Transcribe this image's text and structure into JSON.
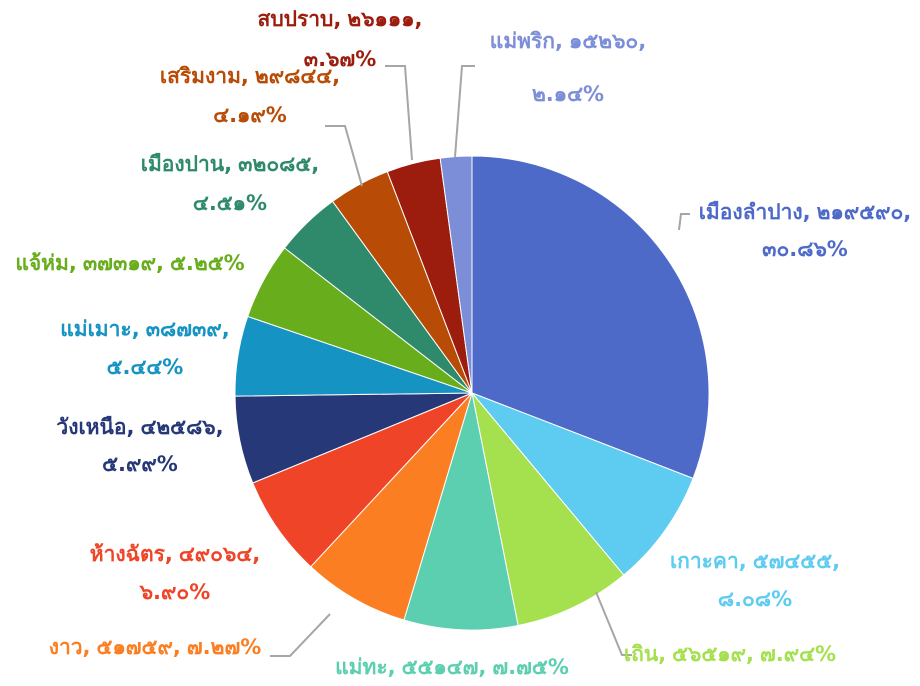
{
  "chart_data": {
    "type": "pie",
    "categories": [
      "เมืองลำปาง,",
      "เกาะคา,",
      "เถิน,",
      "แม่ทะ,",
      "งาว,",
      "ห้างฉัตร,",
      "วังเหนือ,",
      "แม่เมาะ,",
      "แจ้ห่ม,",
      "เมืองปาน,",
      "เสริมงาม,",
      "สบปราบ,",
      "แม่พริก,"
    ],
    "values": [
      219590,
      57455,
      56519,
      55147,
      51759,
      49064,
      42586,
      38739,
      37319,
      32085,
      29844,
      26111,
      15260
    ],
    "value_labels": [
      "๒๑๙๕๙๐,",
      "๕๗๔๕๕,",
      "๕๖๕๑๙,",
      "๕๕๑๔๗,",
      "๕๑๗๕๙,",
      "๔๙๐๖๔,",
      "๔๒๕๘๖,",
      "๓๘๗๓๙,",
      "๓๗๓๑๙,",
      "๓๒๐๘๕,",
      "๒๙๘๔๔,",
      "๒๖๑๑๑,",
      "๑๕๒๖๐,"
    ],
    "percents": [
      30.86,
      8.08,
      7.94,
      7.75,
      7.27,
      6.9,
      5.99,
      5.44,
      5.25,
      4.51,
      4.19,
      3.67,
      2.14
    ],
    "percent_labels": [
      "๓๐.๘๖%",
      "๘.๐๘%",
      "๗.๙๔%",
      "๗.๗๕%",
      "๗.๒๗%",
      "๖.๙๐%",
      "๕.๙๙%",
      "๕.๔๔%",
      "๕.๒๕%",
      "๔.๕๑%",
      "๔.๑๙%",
      "๓.๖๗%",
      "๒.๑๔%"
    ],
    "colors": [
      "#4e6ac9",
      "#5ecbf0",
      "#a5e04e",
      "#5ccfb0",
      "#fb7f22",
      "#ef4427",
      "#263878",
      "#1593c2",
      "#68ad1b",
      "#2e8a6b",
      "#b84c06",
      "#9c1d0e",
      "#7d8ed8"
    ]
  }
}
